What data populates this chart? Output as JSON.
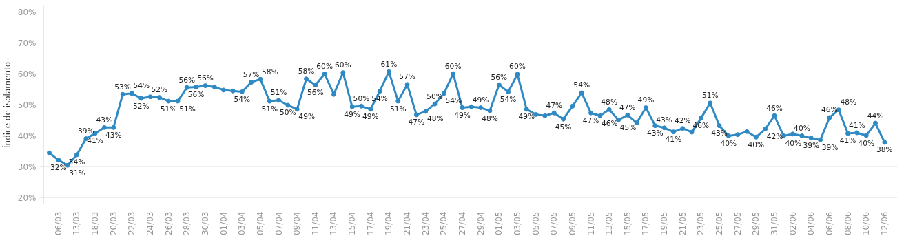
{
  "chart_data": {
    "type": "line",
    "ylabel": "Índice de isolamento",
    "categories": [
      null,
      "06/03",
      null,
      "13/03",
      null,
      "18/03",
      null,
      "20/03",
      null,
      "22/03",
      null,
      "24/03",
      null,
      "26/03",
      null,
      "28/03",
      null,
      "30/03",
      null,
      "01/04",
      null,
      "03/04",
      null,
      "05/04",
      null,
      "07/04",
      null,
      "09/04",
      null,
      "11/04",
      null,
      "13/04",
      null,
      "15/04",
      null,
      "17/04",
      null,
      "19/04",
      null,
      "21/04",
      null,
      "23/04",
      null,
      "25/04",
      null,
      "27/04",
      null,
      "29/04",
      null,
      "01/05",
      null,
      "03/05",
      null,
      "05/05",
      null,
      "07/05",
      null,
      "09/05",
      null,
      "11/05",
      null,
      "13/05",
      null,
      "15/05",
      null,
      "17/05",
      null,
      "19/05",
      null,
      "21/05",
      null,
      "23/05",
      null,
      "25/05",
      null,
      "27/05",
      null,
      "29/05",
      null,
      "31/05",
      null,
      "02/06",
      null,
      "04/06",
      null,
      "06/06",
      null,
      "08/06",
      null,
      "10/06",
      null,
      "12/06"
    ],
    "series": [
      {
        "color": "#2f8ac4",
        "values": [
          34.5,
          32.2,
          30.5,
          33.9,
          39.1,
          40.8,
          42.7,
          42.7,
          53.4,
          53.7,
          52.1,
          52.6,
          52.4,
          51.2,
          51.2,
          55.6,
          55.8,
          56.2,
          55.8,
          54.8,
          54.5,
          54.2,
          57.3,
          58.3,
          51.2,
          51.5,
          49.9,
          48.6,
          58.4,
          56.4,
          60.0,
          53.4,
          60.4,
          49.4,
          49.6,
          48.6,
          54.4,
          60.7,
          51.2,
          56.6,
          46.8,
          47.9,
          50.3,
          53.7,
          60.1,
          49.1,
          49.4,
          49.1,
          48.1,
          56.5,
          54.2,
          59.9,
          48.6,
          46.9,
          46.5,
          47.4,
          45.4,
          49.6,
          53.9,
          47.4,
          46.5,
          48.5,
          45.1,
          46.7,
          44.2,
          49.1,
          43.3,
          42.6,
          41.3,
          42.4,
          41.2,
          45.7,
          50.6,
          43.3,
          40.0,
          40.4,
          41.4,
          39.6,
          42.2,
          46.5,
          40.0,
          40.6,
          40.0,
          39.3,
          38.7,
          45.9,
          48.4,
          40.8,
          41.0,
          40.1,
          44.1,
          37.9
        ],
        "value_labels": [
          null,
          "32%",
          "31%",
          "34%",
          "39%",
          "41%",
          "43%",
          "43%",
          "53%",
          "54%",
          "52%",
          null,
          "52%",
          "51%",
          "51%",
          "56%",
          "56%",
          "56%",
          null,
          null,
          null,
          "54%",
          "57%",
          "58%",
          "51%",
          "51%",
          "50%",
          "49%",
          "58%",
          "56%",
          "60%",
          null,
          "60%",
          "49%",
          "50%",
          "49%",
          "54%",
          "61%",
          "51%",
          "57%",
          "47%",
          "48%",
          "50%",
          "54%",
          "60%",
          "49%",
          null,
          "49%",
          "48%",
          "56%",
          "54%",
          "60%",
          "49%",
          null,
          null,
          "47%",
          "45%",
          null,
          "54%",
          "47%",
          "46%",
          "48%",
          "45%",
          "47%",
          null,
          "49%",
          "43%",
          "43%",
          "41%",
          "42%",
          null,
          "46%",
          "51%",
          "43%",
          "40%",
          null,
          null,
          "40%",
          "42%",
          "46%",
          "40%",
          null,
          "40%",
          "39%",
          "39%",
          "46%",
          "48%",
          "41%",
          "41%",
          "40%",
          "44%",
          "38%"
        ]
      }
    ],
    "ylim": [
      18,
      82
    ],
    "yticks": [
      {
        "value": 20,
        "label": "20%"
      },
      {
        "value": 30,
        "label": "30%"
      },
      {
        "value": 40,
        "label": "40%"
      },
      {
        "value": 50,
        "label": "50%"
      },
      {
        "value": 60,
        "label": "60%"
      },
      {
        "value": 70,
        "label": "70%"
      },
      {
        "value": 80,
        "label": "80%"
      }
    ],
    "grid": "y",
    "marker": "circle",
    "line_style": "solid"
  }
}
